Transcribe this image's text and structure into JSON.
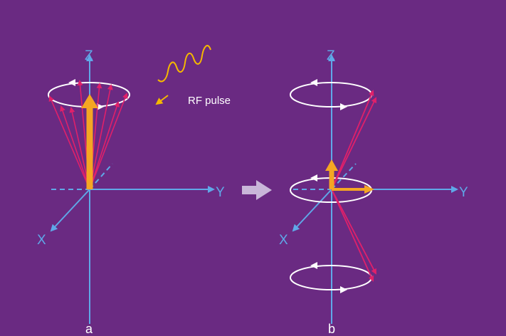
{
  "colors": {
    "background": "#6a2a82",
    "axis": "#5fa8e8",
    "spin_vector": "#e0206a",
    "net_magnetization": "#f5a623",
    "precession_path": "#ffffff",
    "rf_wave": "#f5b800",
    "transition_arrow": "#c9b6d9"
  },
  "icons": {
    "transition": "right-arrow-icon",
    "rf_pulse": "sine-wave-icon"
  },
  "panel_a": {
    "axis_z": "Z",
    "axis_y": "Y",
    "axis_x": "X",
    "caption": "a"
  },
  "panel_b": {
    "axis_z": "Z",
    "axis_y": "Y",
    "axis_x": "X",
    "caption": "b"
  },
  "rf_label": "RF pulse"
}
